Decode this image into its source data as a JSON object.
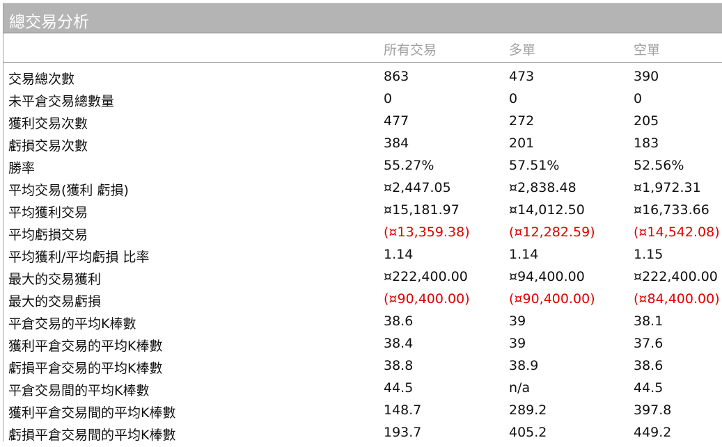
{
  "title": "總交易分析",
  "columns": [
    "所有交易",
    "多單",
    "空單"
  ],
  "negative_color": "#e00000",
  "rows": [
    {
      "label": "交易總次數",
      "values": [
        "863",
        "473",
        "390"
      ],
      "negative": false
    },
    {
      "label": "未平倉交易總數量",
      "values": [
        "0",
        "0",
        "0"
      ],
      "negative": false
    },
    {
      "label": "獲利交易次數",
      "values": [
        "477",
        "272",
        "205"
      ],
      "negative": false
    },
    {
      "label": "虧損交易次數",
      "values": [
        "384",
        "201",
        "183"
      ],
      "negative": false
    },
    {
      "label": "勝率",
      "values": [
        "55.27%",
        "57.51%",
        "52.56%"
      ],
      "negative": false
    },
    {
      "label": "平均交易(獲利  虧損)",
      "values": [
        "¤2,447.05",
        "¤2,838.48",
        "¤1,972.31"
      ],
      "negative": false
    },
    {
      "label": "平均獲利交易",
      "values": [
        "¤15,181.97",
        "¤14,012.50",
        "¤16,733.66"
      ],
      "negative": false
    },
    {
      "label": "平均虧損交易",
      "values": [
        "(¤13,359.38)",
        "(¤12,282.59)",
        "(¤14,542.08)"
      ],
      "negative": true
    },
    {
      "label": "平均獲利/平均虧損  比率",
      "values": [
        "1.14",
        "1.14",
        "1.15"
      ],
      "negative": false
    },
    {
      "label": "最大的交易獲利",
      "values": [
        "¤222,400.00",
        "¤94,400.00",
        "¤222,400.00"
      ],
      "negative": false
    },
    {
      "label": "最大的交易虧損",
      "values": [
        "(¤90,400.00)",
        "(¤90,400.00)",
        "(¤84,400.00)"
      ],
      "negative": true
    },
    {
      "label": "平倉交易的平均K棒數",
      "values": [
        "38.6",
        "39",
        "38.1"
      ],
      "negative": false
    },
    {
      "label": "獲利平倉交易的平均K棒數",
      "values": [
        "38.4",
        "39",
        "37.6"
      ],
      "negative": false
    },
    {
      "label": "虧損平倉交易的平均K棒數",
      "values": [
        "38.8",
        "38.9",
        "38.6"
      ],
      "negative": false
    },
    {
      "label": "平倉交易間的平均K棒數",
      "values": [
        "44.5",
        "n/a",
        "44.5"
      ],
      "negative": false
    },
    {
      "label": "獲利平倉交易間的平均K棒數",
      "values": [
        "148.7",
        "289.2",
        "397.8"
      ],
      "negative": false
    },
    {
      "label": "虧損平倉交易間的平均K棒數",
      "values": [
        "193.7",
        "405.2",
        "449.2"
      ],
      "negative": false
    }
  ]
}
